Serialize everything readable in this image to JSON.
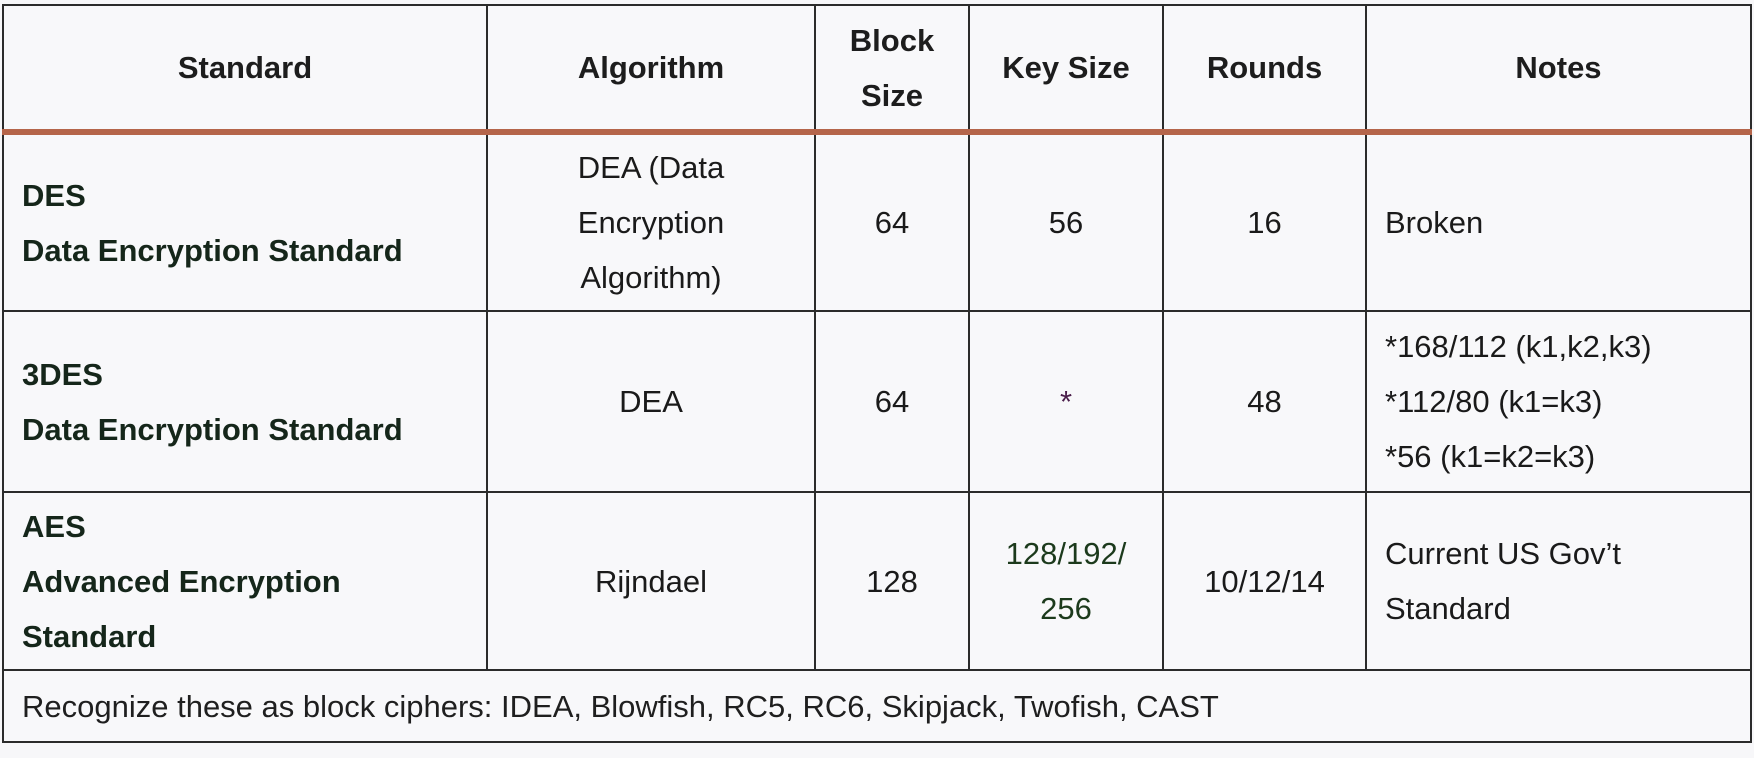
{
  "table": {
    "headers": {
      "standard": "Standard",
      "algorithm": "Algorithm",
      "block_size_line1": "Block",
      "block_size_line2": "Size",
      "key_size": "Key Size",
      "rounds": "Rounds",
      "notes": "Notes"
    },
    "rows": [
      {
        "standard_line1": "DES",
        "standard_line2": "Data Encryption Standard",
        "algorithm_line1": "DEA (Data",
        "algorithm_line2": "Encryption",
        "algorithm_line3": "Algorithm)",
        "block_size": "64",
        "key_size": "56",
        "rounds": "16",
        "notes": "Broken"
      },
      {
        "standard_line1": "3DES",
        "standard_line2": "Data Encryption Standard",
        "algorithm": "DEA",
        "block_size": "64",
        "key_size": "*",
        "rounds": "48",
        "notes_line1": "*168/112 (k1,k2,k3)",
        "notes_line2": "*112/80 (k1=k3)",
        "notes_line3": "*56 (k1=k2=k3)"
      },
      {
        "standard_line1": "AES",
        "standard_line2": "Advanced Encryption",
        "standard_line3": "Standard",
        "algorithm": "Rijndael",
        "block_size": "128",
        "key_size_line1": "128/192/",
        "key_size_line2": "256",
        "rounds": "10/12/14",
        "notes_line1": "Current US Gov’t",
        "notes_line2": "Standard"
      }
    ],
    "footer": "Recognize these as block ciphers: IDEA, Blowfish, RC5, RC6, Skipjack, Twofish, CAST"
  },
  "colors": {
    "header_rule": "#b5654a",
    "standard_column_rule": "#b0365a",
    "grid": "#2b2b2b"
  }
}
